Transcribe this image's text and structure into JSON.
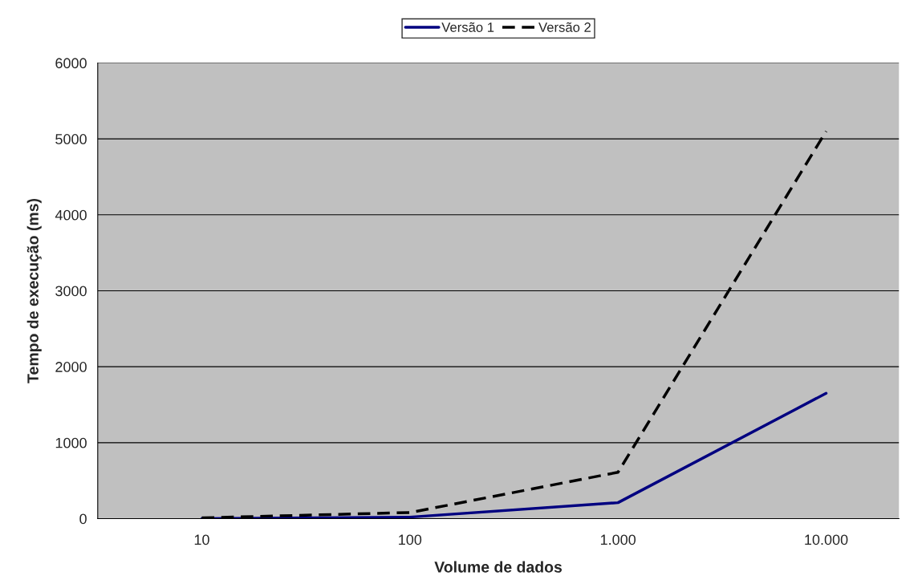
{
  "chart_data": {
    "type": "line",
    "xlabel": "Volume de dados",
    "ylabel": "Tempo de execução (ms)",
    "categories": [
      "10",
      "100",
      "1.000",
      "10.000"
    ],
    "series": [
      {
        "name": "Versão 1",
        "color": "#000080",
        "line_style": "solid",
        "values": [
          0,
          20,
          210,
          1650
        ]
      },
      {
        "name": "Versão 2",
        "color": "#000000",
        "line_style": "dashed",
        "values": [
          10,
          80,
          610,
          5100
        ]
      }
    ],
    "ylim": [
      0,
      6000
    ],
    "yticks": [
      0,
      1000,
      2000,
      3000,
      4000,
      5000,
      6000
    ],
    "grid": "y",
    "legend": "top",
    "marker": "none"
  }
}
